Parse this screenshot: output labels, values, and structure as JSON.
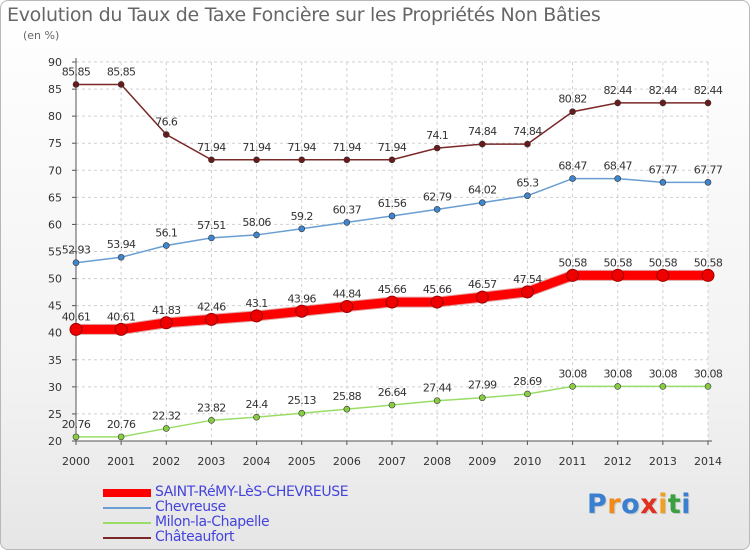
{
  "title": "Evolution du Taux de Taxe Foncière sur les Propriétés Non Bâties",
  "unit_label": "(en %)",
  "logo": {
    "text": "Proxiti",
    "letters": [
      {
        "ch": "P",
        "color": "#3a7fd0"
      },
      {
        "ch": "r",
        "color": "#f08a1a"
      },
      {
        "ch": "o",
        "color": "#3a7fd0"
      },
      {
        "ch": "x",
        "color": "#e03020"
      },
      {
        "ch": "i",
        "color": "#f0a020"
      },
      {
        "ch": "t",
        "color": "#3aa040"
      },
      {
        "ch": "i",
        "color": "#3a7fd0"
      }
    ]
  },
  "chart_data": {
    "type": "line",
    "title": "Evolution du Taux de Taxe Foncière sur les Propriétés Non Bâties",
    "ylabel": "(en %)",
    "xlabel": "",
    "ylim": [
      20,
      90
    ],
    "y_ticks": [
      20,
      25,
      30,
      35,
      40,
      45,
      50,
      55,
      60,
      65,
      70,
      75,
      80,
      85,
      90
    ],
    "grid": true,
    "legend_position": "bottom-left",
    "categories": [
      "2000",
      "2001",
      "2002",
      "2003",
      "2004",
      "2005",
      "2006",
      "2007",
      "2008",
      "2009",
      "2010",
      "2011",
      "2012",
      "2013",
      "2014"
    ],
    "series": [
      {
        "name": "SAINT-RéMY-LèS-CHEVREUSE",
        "color": "#ff0000",
        "marker_color": "#ee0000",
        "emphasis": true,
        "values": [
          40.61,
          40.61,
          41.83,
          42.46,
          43.1,
          43.96,
          44.84,
          45.66,
          45.66,
          46.57,
          47.54,
          50.58,
          50.58,
          50.58,
          50.58
        ],
        "labels": [
          "40.61",
          "40.61",
          "41.83",
          "42.46",
          "43.1",
          "43.96",
          "44.84",
          "45.66",
          "45.66",
          "46.57",
          "47.54",
          "50.58",
          "50.58",
          "50.58",
          "50.58"
        ]
      },
      {
        "name": "Chevreuse",
        "color": "#6a9ed2",
        "marker_color": "#3f86cf",
        "emphasis": false,
        "values": [
          52.93,
          53.94,
          56.1,
          57.51,
          58.06,
          59.2,
          60.37,
          61.56,
          62.79,
          64.02,
          65.3,
          68.47,
          68.47,
          67.77,
          67.77
        ],
        "labels": [
          "52.93",
          "53.94",
          "56.1",
          "57.51",
          "58.06",
          "59.2",
          "60.37",
          "61.56",
          "62.79",
          "64.02",
          "65.3",
          "68.47",
          "68.47",
          "67.77",
          "67.77"
        ]
      },
      {
        "name": "Milon-la-Chapelle",
        "color": "#99dd66",
        "marker_color": "#88cc44",
        "emphasis": false,
        "values": [
          20.76,
          20.76,
          22.32,
          23.82,
          24.4,
          25.13,
          25.88,
          26.64,
          27.44,
          27.99,
          28.69,
          30.08,
          30.08,
          30.08,
          30.08
        ],
        "labels": [
          "20.76",
          "20.76",
          "22.32",
          "23.82",
          "24.4",
          "25.13",
          "25.88",
          "26.64",
          "27.44",
          "27.99",
          "28.69",
          "30.08",
          "30.08",
          "30.08",
          "30.08"
        ]
      },
      {
        "name": "Châteaufort",
        "color": "#7a2828",
        "marker_color": "#6a1a1a",
        "emphasis": false,
        "values": [
          85.85,
          85.85,
          76.6,
          71.94,
          71.94,
          71.94,
          71.94,
          71.94,
          74.1,
          74.84,
          74.84,
          80.82,
          82.44,
          82.44,
          82.44
        ],
        "labels": [
          "85.85",
          "85.85",
          "76.6",
          "71.94",
          "71.94",
          "71.94",
          "71.94",
          "71.94",
          "74.1",
          "74.84",
          "74.84",
          "80.82",
          "82.44",
          "82.44",
          "82.44"
        ]
      }
    ],
    "legend_text_colors": [
      "#4444dd",
      "#4444dd",
      "#4444dd",
      "#4444dd"
    ]
  }
}
